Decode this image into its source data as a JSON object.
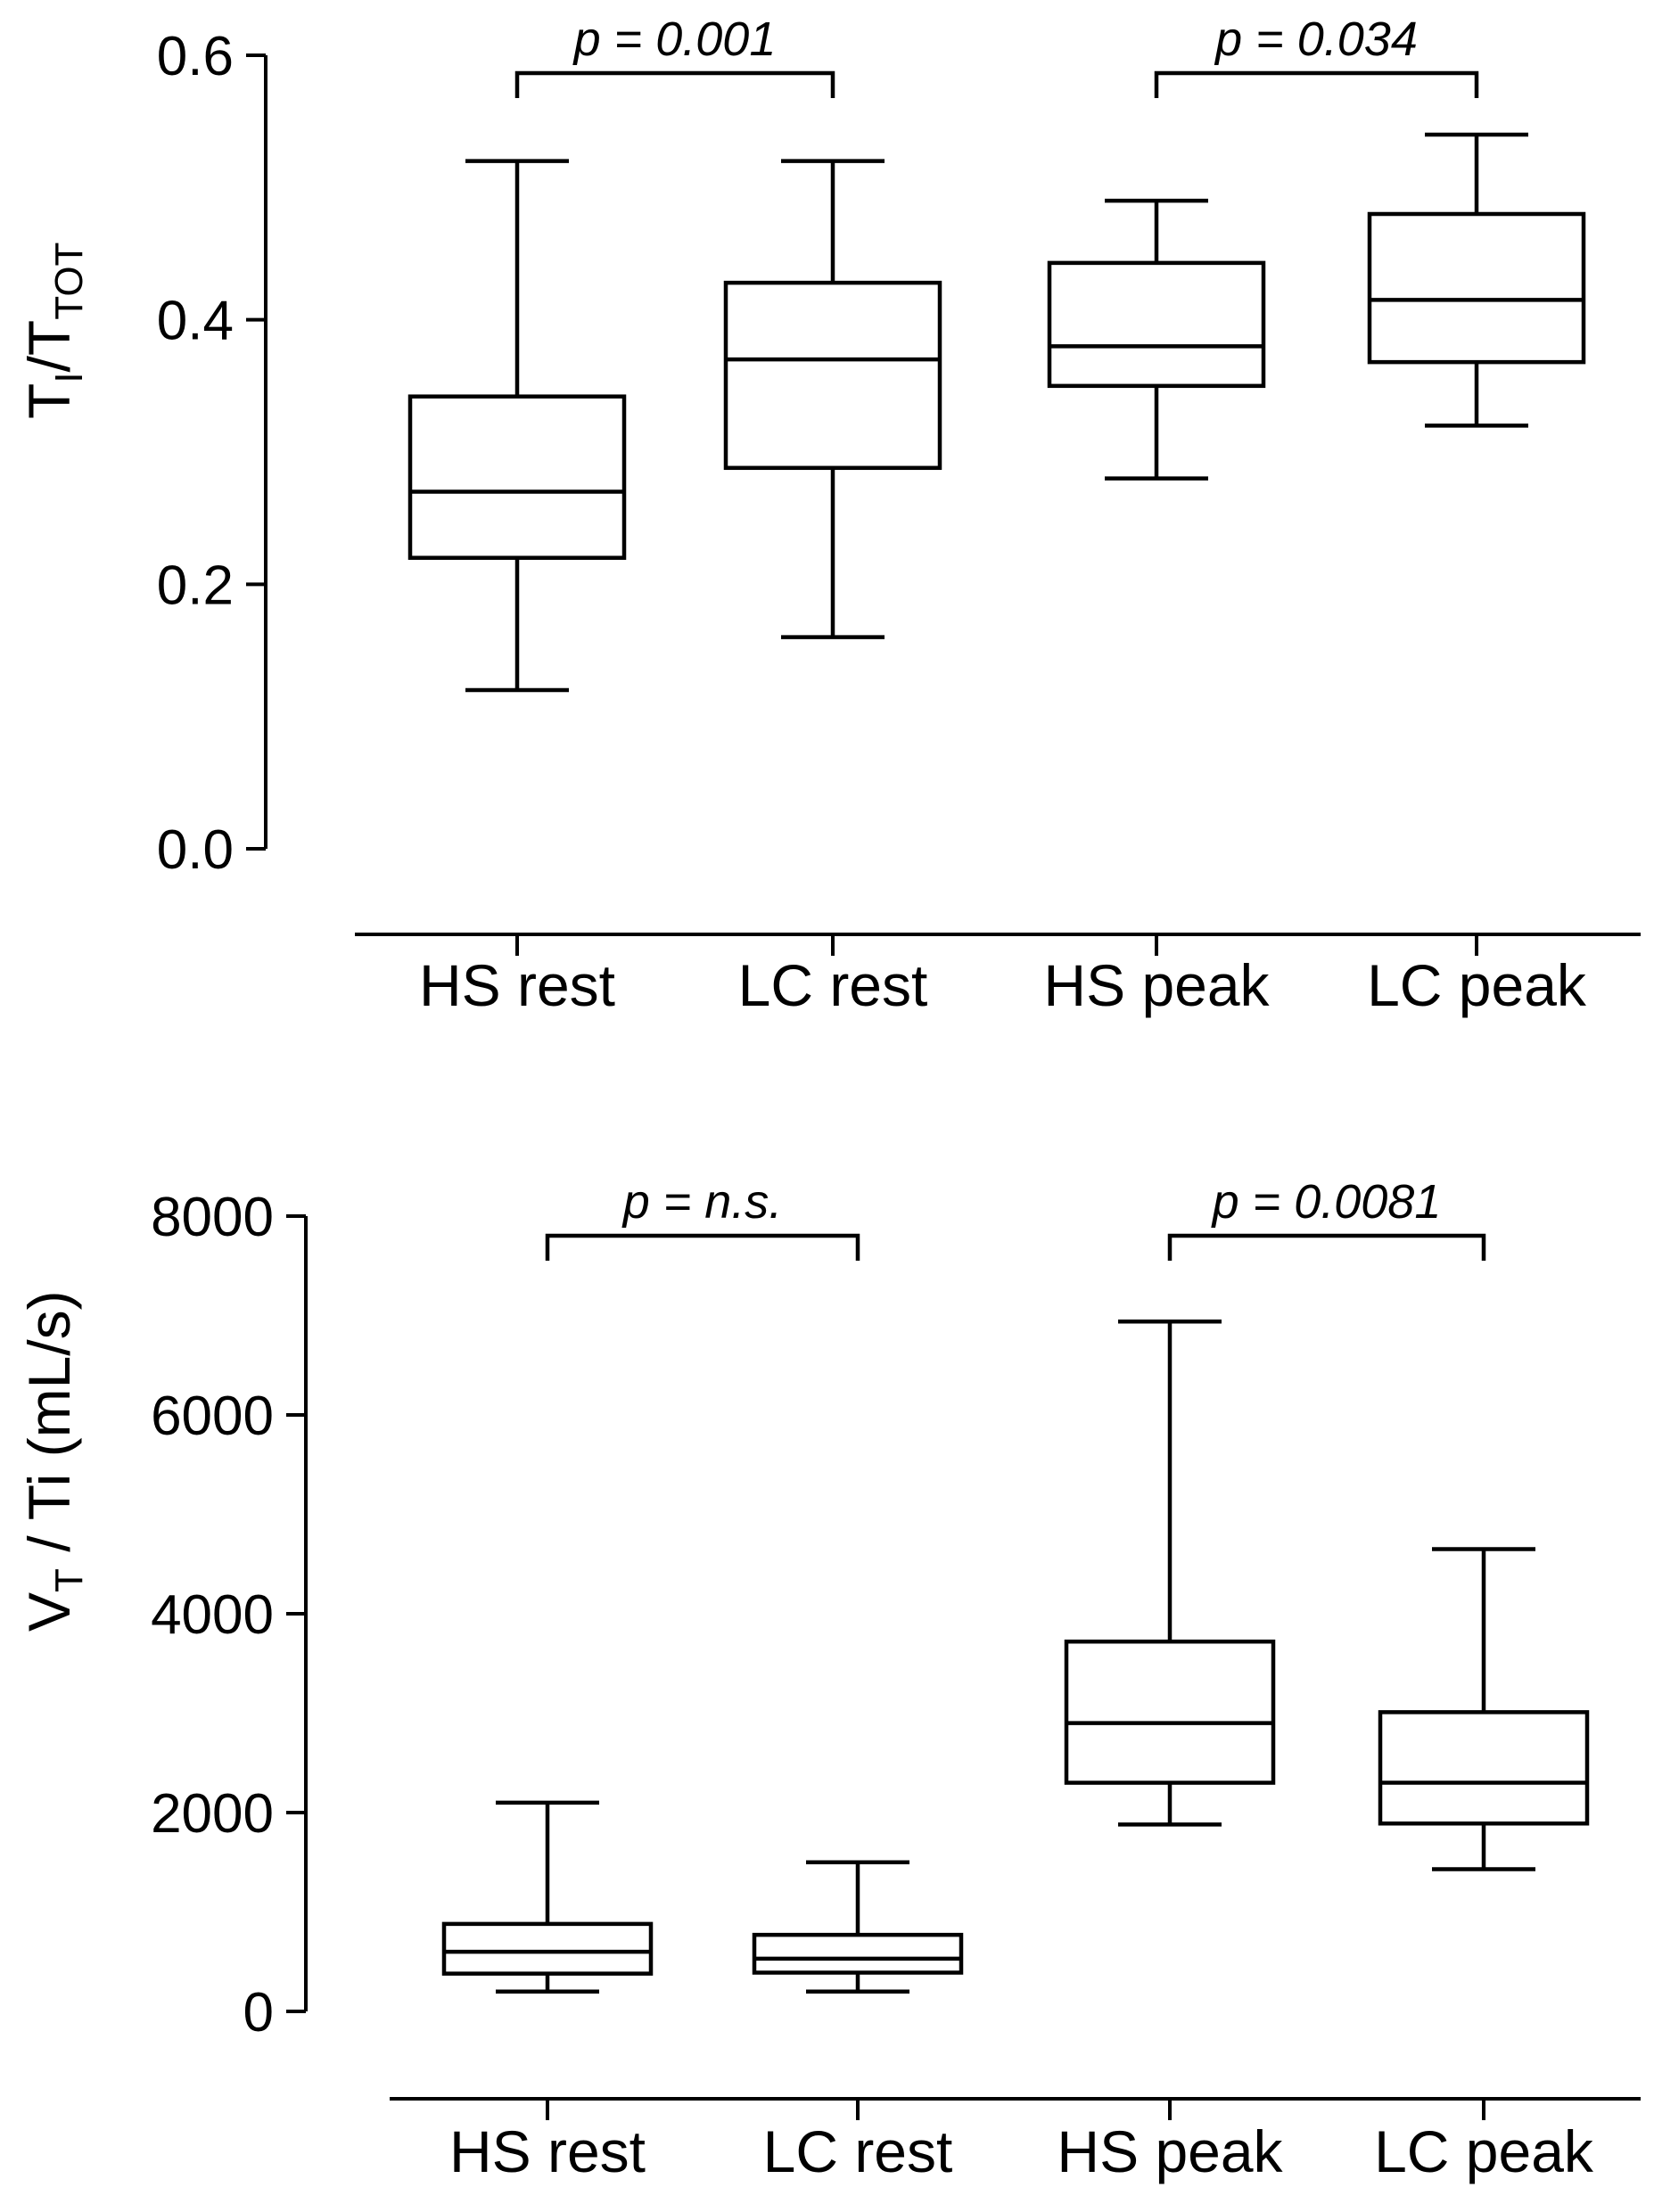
{
  "chart_data": [
    {
      "type": "box",
      "ylabel": "TI/TTOT",
      "ylabel_parts": {
        "main1": "T",
        "sub1": "I",
        "slash": "/",
        "main2": "T",
        "sub2": "TOT"
      },
      "ylim": [
        0,
        0.6
      ],
      "yticks": [
        "0.0",
        "0.2",
        "0.4",
        "0.6"
      ],
      "ytick_values": [
        0,
        0.2,
        0.4,
        0.6
      ],
      "categories": [
        "HS rest",
        "LC rest",
        "HS peak",
        "LC peak"
      ],
      "boxes": [
        {
          "min": 0.12,
          "q1": 0.22,
          "median": 0.27,
          "q3": 0.342,
          "max": 0.52
        },
        {
          "min": 0.16,
          "q1": 0.288,
          "median": 0.37,
          "q3": 0.428,
          "max": 0.52
        },
        {
          "min": 0.28,
          "q1": 0.35,
          "median": 0.38,
          "q3": 0.443,
          "max": 0.49
        },
        {
          "min": 0.32,
          "q1": 0.368,
          "median": 0.415,
          "q3": 0.48,
          "max": 0.54
        }
      ],
      "comparisons": [
        {
          "from": "HS rest",
          "to": "LC rest",
          "label": "p = 0.001"
        },
        {
          "from": "HS peak",
          "to": "LC peak",
          "label": "p = 0.034"
        }
      ]
    },
    {
      "type": "box",
      "ylabel": "VT / Ti (mL/s)",
      "ylabel_parts": {
        "main1": "V",
        "sub1": "T",
        "rest": " / Ti (mL/s)"
      },
      "ylim": [
        0,
        8000
      ],
      "yticks": [
        "0",
        "2000",
        "4000",
        "6000",
        "8000"
      ],
      "ytick_values": [
        0,
        2000,
        4000,
        6000,
        8000
      ],
      "categories": [
        "HS rest",
        "LC rest",
        "HS peak",
        "LC peak"
      ],
      "boxes": [
        {
          "min": 200,
          "q1": 380,
          "median": 600,
          "q3": 880,
          "max": 2100
        },
        {
          "min": 200,
          "q1": 390,
          "median": 530,
          "q3": 770,
          "max": 1500
        },
        {
          "min": 1880,
          "q1": 2300,
          "median": 2900,
          "q3": 3720,
          "max": 6940
        },
        {
          "min": 1430,
          "q1": 1890,
          "median": 2300,
          "q3": 3010,
          "max": 4650
        }
      ],
      "comparisons": [
        {
          "from": "HS rest",
          "to": "LC rest",
          "label": "p = n.s."
        },
        {
          "from": "HS peak",
          "to": "LC peak",
          "label": "p = 0.0081"
        }
      ]
    }
  ]
}
